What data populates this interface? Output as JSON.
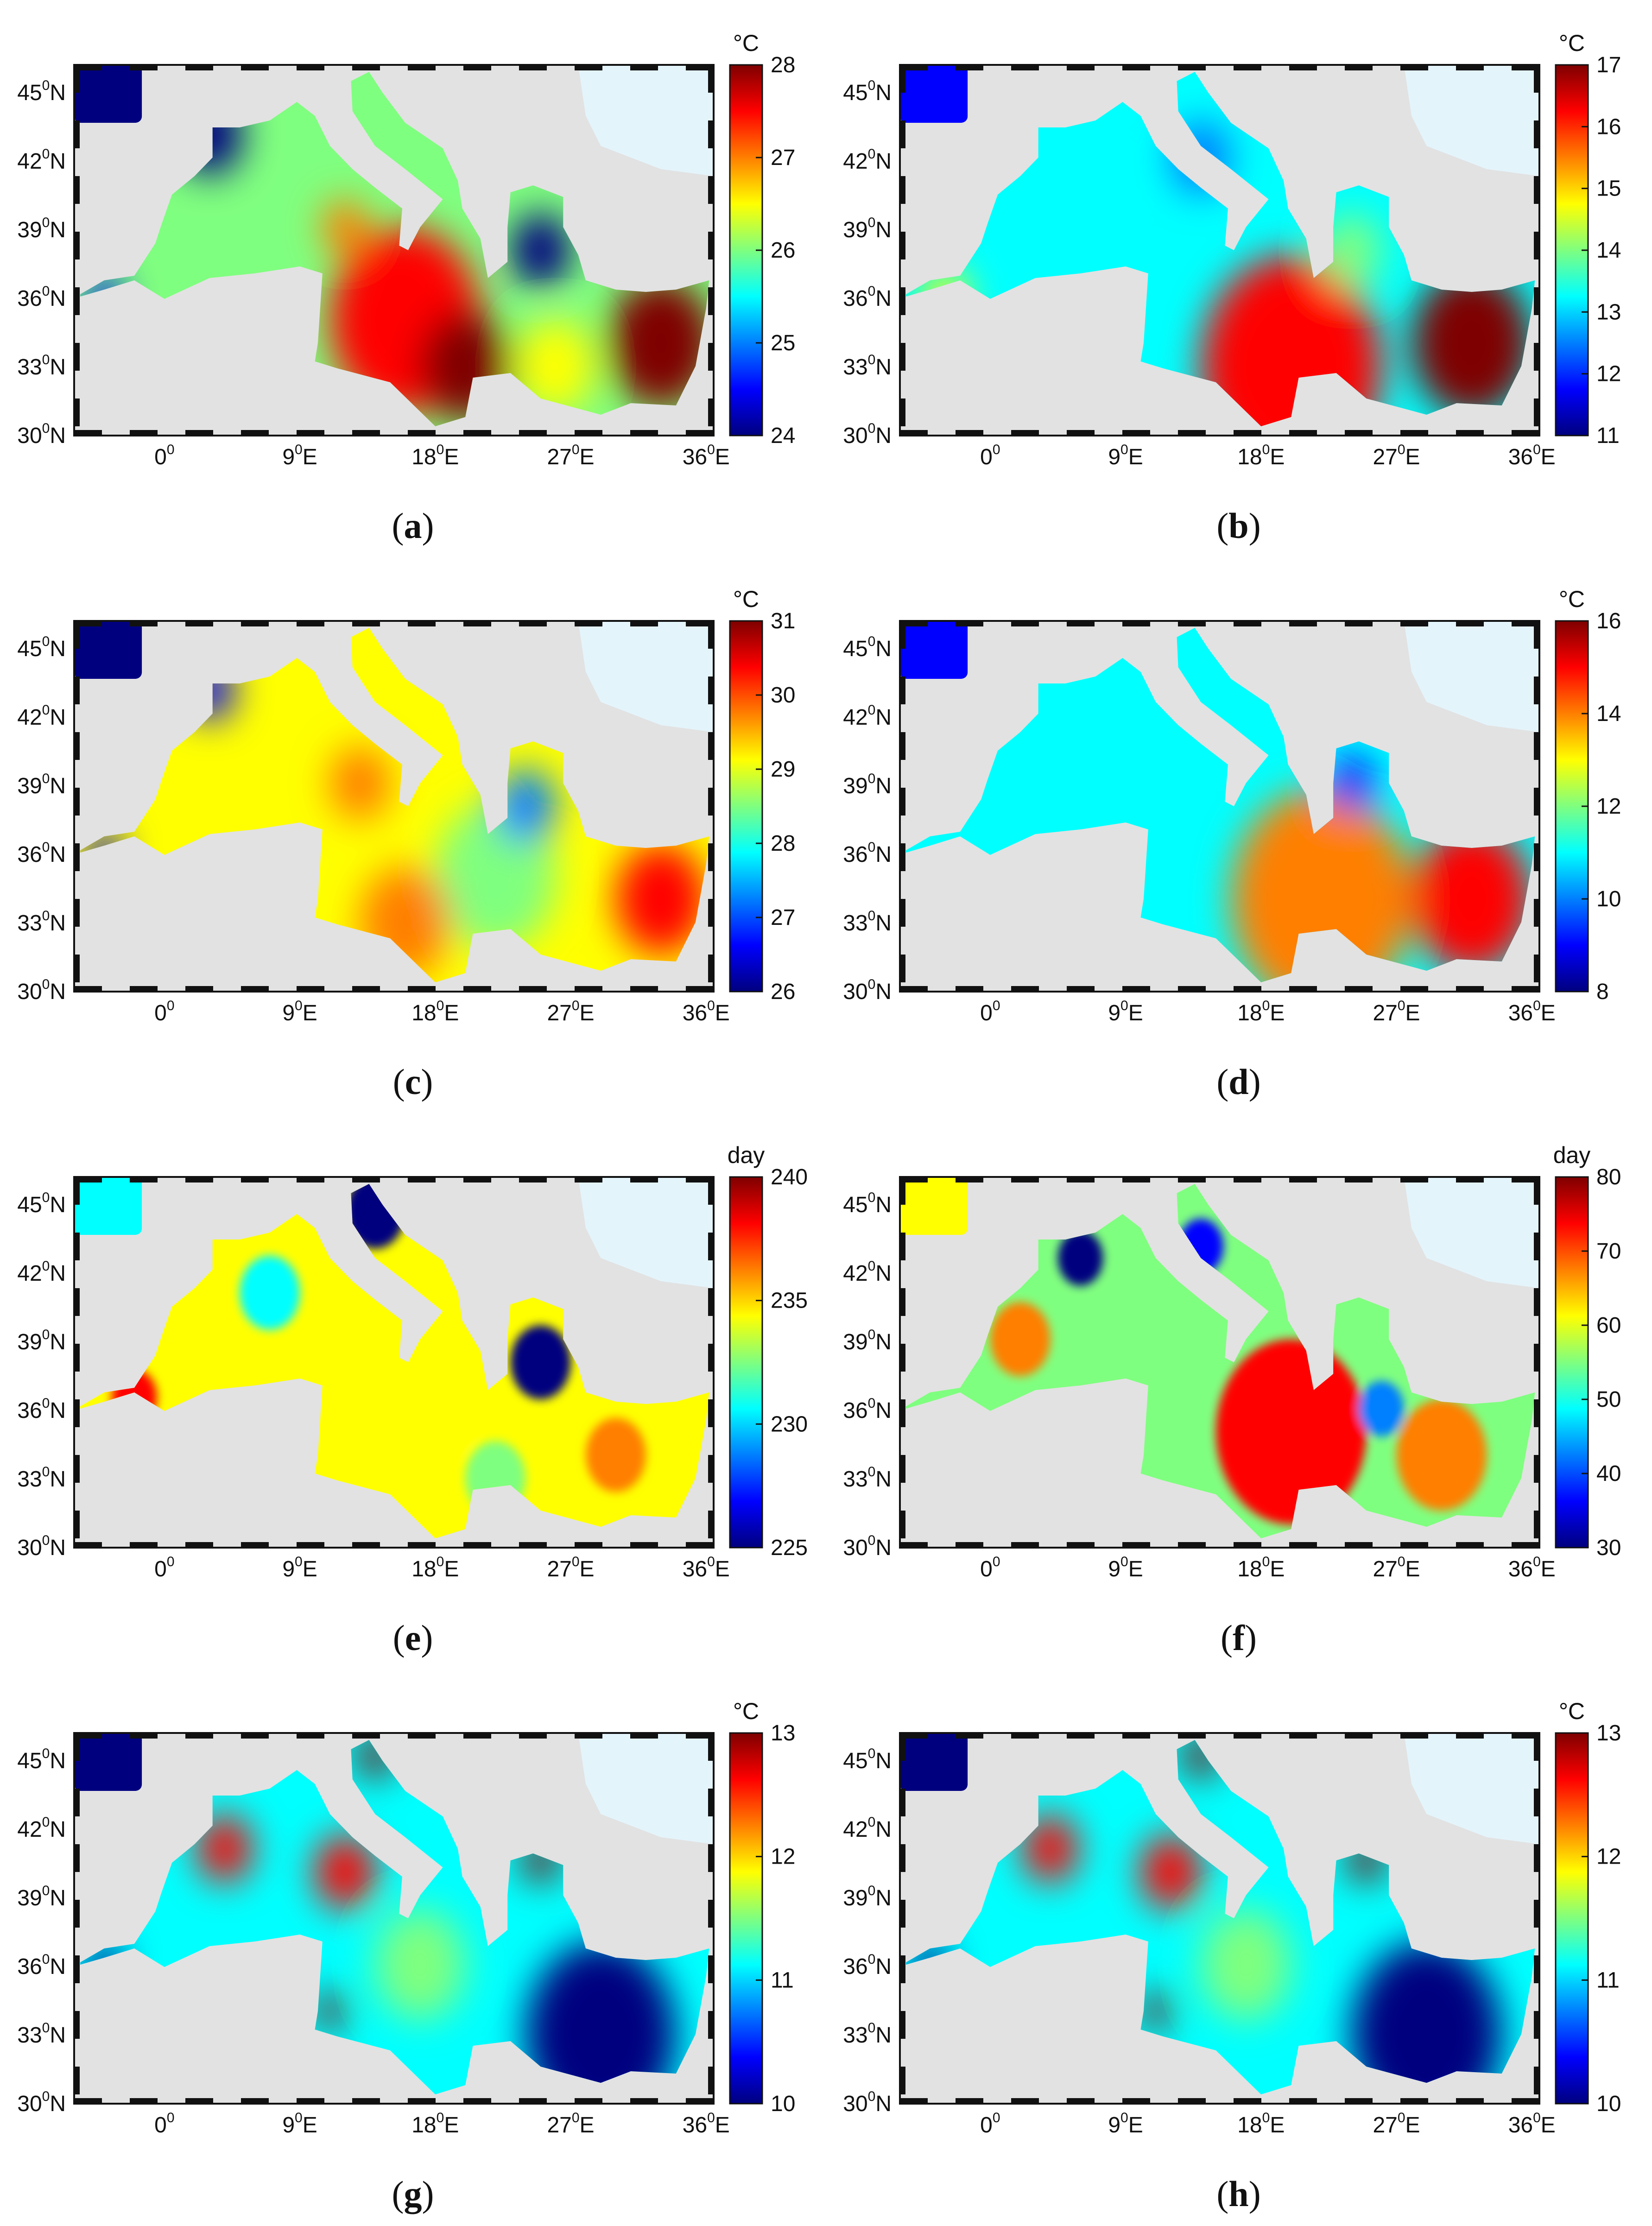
{
  "lat_labels": [
    "45",
    "42",
    "39",
    "36",
    "33",
    "30"
  ],
  "lat_suffix": "N",
  "lon_labels": [
    "0",
    "9",
    "18",
    "27",
    "36"
  ],
  "lon_suffix": "E",
  "degree_mark": "0",
  "colors": {
    "land": "#e2e2e2",
    "sea_outside": "#e4f4fb",
    "frame_dark": "#111111"
  },
  "panels": [
    {
      "letter": "a",
      "unit": "°C",
      "ticks": [
        "28",
        "27",
        "26",
        "25",
        "24"
      ]
    },
    {
      "letter": "b",
      "unit": "°C",
      "ticks": [
        "17",
        "16",
        "15",
        "14",
        "13",
        "12",
        "11"
      ]
    },
    {
      "letter": "c",
      "unit": "°C",
      "ticks": [
        "31",
        "30",
        "29",
        "28",
        "27",
        "26"
      ]
    },
    {
      "letter": "d",
      "unit": "°C",
      "ticks": [
        "16",
        "14",
        "12",
        "10",
        "8"
      ]
    },
    {
      "letter": "e",
      "unit": "day",
      "ticks": [
        "240",
        "235",
        "230",
        "225"
      ]
    },
    {
      "letter": "f",
      "unit": "day",
      "ticks": [
        "80",
        "70",
        "60",
        "50",
        "40",
        "30"
      ]
    },
    {
      "letter": "g",
      "unit": "°C",
      "ticks": [
        "13",
        "12",
        "11",
        "10"
      ]
    },
    {
      "letter": "h",
      "unit": "°C",
      "ticks": [
        "13",
        "12",
        "11",
        "10"
      ]
    }
  ]
}
